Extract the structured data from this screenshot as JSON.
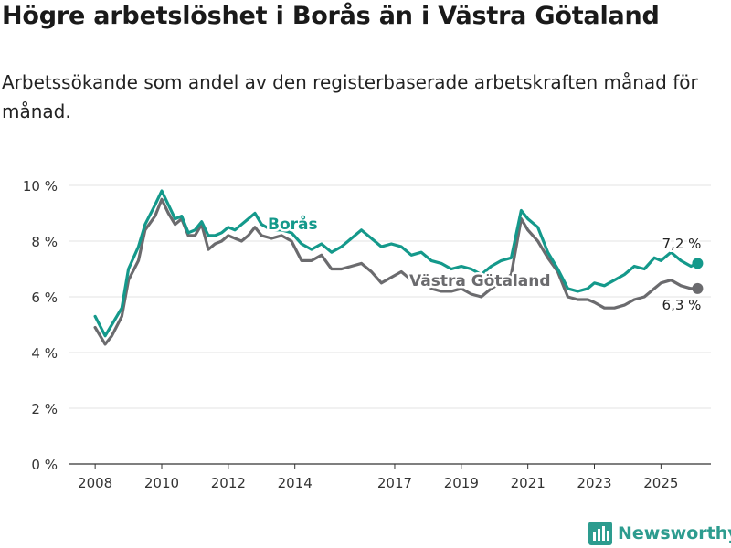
{
  "header": {
    "title": "Högre arbetslöshet i Borås än i Västra Götaland",
    "subtitle": "Arbetssökande som andel av den registerbaserade arbetskraften månad för månad."
  },
  "chart_data": {
    "type": "line",
    "ylim": [
      0,
      10
    ],
    "y_ticks": [
      0,
      2,
      4,
      6,
      8,
      10
    ],
    "y_tick_labels": [
      "0 %",
      "2 %",
      "4 %",
      "6 %",
      "8 %",
      "10 %"
    ],
    "x_tick_labels": [
      "2008",
      "2010",
      "2012",
      "2014",
      "2017",
      "2019",
      "2021",
      "2023",
      "2025"
    ],
    "x_tick_positions": [
      2008.0,
      2010.0,
      2012.0,
      2014.0,
      2017.0,
      2019.0,
      2021.0,
      2023.0,
      2025.0
    ],
    "xlim": [
      2007.2,
      2026.5
    ],
    "colors": {
      "boras": "#14998b",
      "vg": "#6b6b6e",
      "axis": "#333333",
      "grid": "#e3e3e3"
    },
    "series": [
      {
        "name": "Borås",
        "label_text": "Borås",
        "end_label": "7,2 %",
        "x": [
          2008.0,
          2008.3,
          2008.5,
          2008.8,
          2009.0,
          2009.3,
          2009.5,
          2009.8,
          2010.0,
          2010.2,
          2010.4,
          2010.6,
          2010.8,
          2011.0,
          2011.2,
          2011.4,
          2011.6,
          2011.8,
          2012.0,
          2012.2,
          2012.4,
          2012.6,
          2012.8,
          2013.0,
          2013.3,
          2013.6,
          2013.9,
          2014.2,
          2014.5,
          2014.8,
          2015.1,
          2015.4,
          2015.7,
          2016.0,
          2016.3,
          2016.6,
          2016.9,
          2017.2,
          2017.5,
          2017.8,
          2018.1,
          2018.4,
          2018.7,
          2019.0,
          2019.3,
          2019.6,
          2019.9,
          2020.2,
          2020.5,
          2020.8,
          2021.0,
          2021.3,
          2021.6,
          2021.9,
          2022.2,
          2022.5,
          2022.8,
          2023.0,
          2023.3,
          2023.6,
          2023.9,
          2024.2,
          2024.5,
          2024.8,
          2025.0,
          2025.3,
          2025.6,
          2025.9,
          2026.1
        ],
        "values": [
          5.3,
          4.6,
          5.0,
          5.6,
          7.0,
          7.8,
          8.6,
          9.3,
          9.8,
          9.3,
          8.8,
          8.9,
          8.3,
          8.4,
          8.7,
          8.2,
          8.2,
          8.3,
          8.5,
          8.4,
          8.6,
          8.8,
          9.0,
          8.6,
          8.4,
          8.4,
          8.3,
          7.9,
          7.7,
          7.9,
          7.6,
          7.8,
          8.1,
          8.4,
          8.1,
          7.8,
          7.9,
          7.8,
          7.5,
          7.6,
          7.3,
          7.2,
          7.0,
          7.1,
          7.0,
          6.8,
          7.1,
          7.3,
          7.4,
          9.1,
          8.8,
          8.5,
          7.6,
          7.0,
          6.3,
          6.2,
          6.3,
          6.5,
          6.4,
          6.6,
          6.8,
          7.1,
          7.0,
          7.4,
          7.3,
          7.6,
          7.3,
          7.1,
          7.2
        ]
      },
      {
        "name": "Västra Götaland",
        "label_text": "Västra Götaland",
        "end_label": "6,3 %",
        "x": [
          2008.0,
          2008.3,
          2008.5,
          2008.8,
          2009.0,
          2009.3,
          2009.5,
          2009.8,
          2010.0,
          2010.2,
          2010.4,
          2010.6,
          2010.8,
          2011.0,
          2011.2,
          2011.4,
          2011.6,
          2011.8,
          2012.0,
          2012.2,
          2012.4,
          2012.6,
          2012.8,
          2013.0,
          2013.3,
          2013.6,
          2013.9,
          2014.2,
          2014.5,
          2014.8,
          2015.1,
          2015.4,
          2015.7,
          2016.0,
          2016.3,
          2016.6,
          2016.9,
          2017.2,
          2017.5,
          2017.8,
          2018.1,
          2018.4,
          2018.7,
          2019.0,
          2019.3,
          2019.6,
          2019.9,
          2020.2,
          2020.5,
          2020.8,
          2021.0,
          2021.3,
          2021.6,
          2021.9,
          2022.2,
          2022.5,
          2022.8,
          2023.0,
          2023.3,
          2023.6,
          2023.9,
          2024.2,
          2024.5,
          2024.8,
          2025.0,
          2025.3,
          2025.6,
          2025.9,
          2026.1
        ],
        "values": [
          4.9,
          4.3,
          4.6,
          5.3,
          6.6,
          7.3,
          8.4,
          8.9,
          9.5,
          9.0,
          8.6,
          8.8,
          8.2,
          8.2,
          8.6,
          7.7,
          7.9,
          8.0,
          8.2,
          8.1,
          8.0,
          8.2,
          8.5,
          8.2,
          8.1,
          8.2,
          8.0,
          7.3,
          7.3,
          7.5,
          7.0,
          7.0,
          7.1,
          7.2,
          6.9,
          6.5,
          6.7,
          6.9,
          6.6,
          6.7,
          6.3,
          6.2,
          6.2,
          6.3,
          6.1,
          6.0,
          6.3,
          6.5,
          6.8,
          8.8,
          8.4,
          8.0,
          7.4,
          6.9,
          6.0,
          5.9,
          5.9,
          5.8,
          5.6,
          5.6,
          5.7,
          5.9,
          6.0,
          6.3,
          6.5,
          6.6,
          6.4,
          6.3,
          6.3
        ]
      }
    ]
  },
  "brand": {
    "name": "Newsworthy",
    "icon": "bar-chart-logo-icon"
  }
}
